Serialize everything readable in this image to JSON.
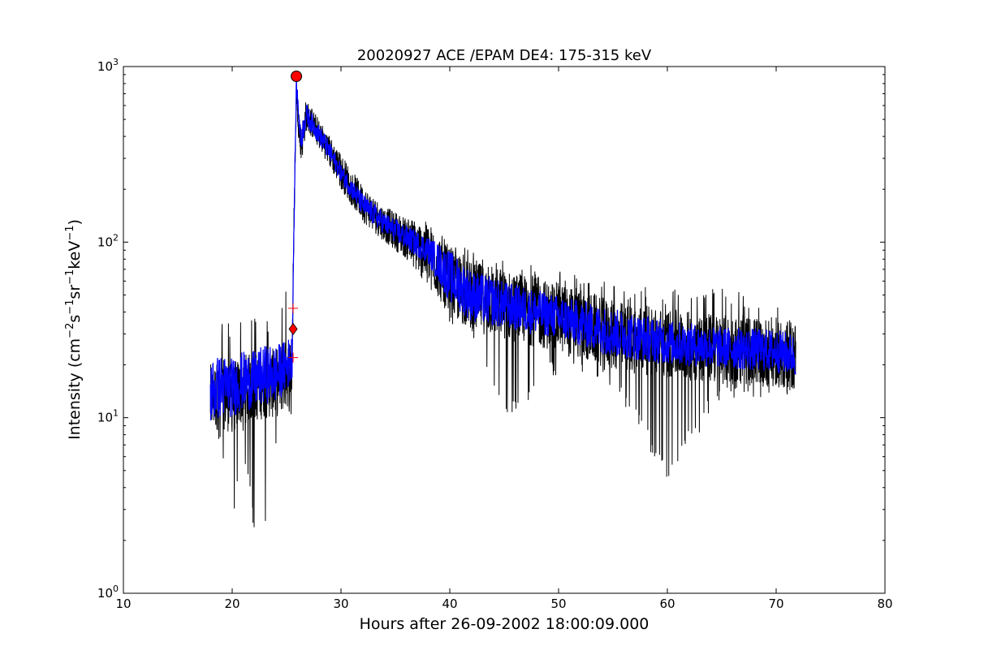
{
  "chart_data": {
    "type": "line",
    "title": "20020927 ACE /EPAM DE4: 175-315 keV",
    "xlabel": "Hours after 26-09-2002 18:00:09.000",
    "ylabel": {
      "text": "Intensity (cm",
      "parts": [
        "Intensity (cm",
        "−2",
        "s",
        "−1",
        "sr",
        "−1",
        "keV",
        "−1",
        ")"
      ]
    },
    "xlim": [
      10,
      80
    ],
    "ylim": [
      1,
      1000
    ],
    "yscale": "log",
    "grid": false,
    "x_ticks": [
      "10",
      "20",
      "30",
      "40",
      "50",
      "60",
      "70",
      "80"
    ],
    "y_ticks": [
      {
        "base": "10",
        "exp": "0"
      },
      {
        "base": "10",
        "exp": "1"
      },
      {
        "base": "10",
        "exp": "2"
      },
      {
        "base": "10",
        "exp": "3"
      }
    ],
    "colors": {
      "raw": "#000000",
      "smoothed": "#0000ff",
      "markers": "#ff0000"
    },
    "series": [
      {
        "kind": "raw",
        "x": [
          18.0,
          19.0,
          20.0,
          21.0,
          22.0,
          23.0,
          24.0,
          25.0,
          25.5,
          25.7,
          25.9,
          26.3,
          26.8,
          27.5,
          28.5,
          30.0,
          32.0,
          34.0,
          36.0,
          38.0,
          40.0,
          42.0,
          45.0,
          50.0,
          55.0,
          60.0,
          65.0,
          70.0,
          71.8
        ],
        "y": [
          13,
          14,
          13,
          15,
          15,
          16,
          16,
          18,
          20,
          150,
          860,
          360,
          560,
          480,
          380,
          260,
          170,
          130,
          110,
          95,
          60,
          50,
          45,
          38,
          30,
          27,
          25,
          24,
          23
        ],
        "noise_min": [
          6.5,
          6.5,
          2.2,
          6.5,
          2.2,
          2.2,
          6.5,
          9.0,
          10,
          120,
          600,
          260,
          430,
          380,
          300,
          200,
          130,
          100,
          80,
          55,
          35,
          25,
          9.0,
          18,
          15,
          4.3,
          13,
          13,
          13
        ],
        "noise_max": [
          38,
          36,
          35,
          38,
          37,
          36,
          38,
          55,
          40,
          200,
          900,
          450,
          660,
          560,
          450,
          320,
          210,
          160,
          140,
          130,
          100,
          90,
          80,
          70,
          60,
          55,
          55,
          50,
          38
        ]
      },
      {
        "kind": "smoothed",
        "x": [
          18.0,
          19.0,
          20.0,
          21.0,
          22.0,
          23.0,
          24.0,
          25.0,
          25.5,
          25.7,
          25.9,
          26.3,
          26.8,
          27.5,
          28.5,
          30.0,
          32.0,
          34.0,
          36.0,
          38.0,
          40.0,
          42.0,
          45.0,
          50.0,
          55.0,
          60.0,
          65.0,
          70.0,
          71.8
        ],
        "y": [
          14,
          15,
          14,
          16,
          16,
          17,
          17,
          19,
          22,
          150,
          820,
          380,
          540,
          460,
          370,
          250,
          165,
          128,
          108,
          92,
          65,
          52,
          45,
          38,
          31,
          27,
          25,
          24,
          23
        ],
        "band_low": [
          9,
          10,
          10,
          11,
          11,
          12,
          12,
          14,
          16,
          130,
          700,
          320,
          460,
          400,
          320,
          220,
          140,
          110,
          90,
          75,
          45,
          35,
          32,
          28,
          22,
          20,
          19,
          18,
          17
        ],
        "band_high": [
          22,
          23,
          22,
          24,
          24,
          26,
          26,
          28,
          30,
          180,
          900,
          440,
          620,
          520,
          420,
          280,
          190,
          148,
          125,
          108,
          90,
          70,
          60,
          50,
          42,
          36,
          33,
          32,
          30
        ]
      }
    ],
    "markers": [
      {
        "label": "peak",
        "shape": "circle",
        "x": 25.9,
        "y": 880
      },
      {
        "label": "onset",
        "shape": "diamond",
        "x": 25.6,
        "y": 32
      },
      {
        "label": "onset-upper",
        "shape": "plus",
        "x": 25.6,
        "y": 42
      },
      {
        "label": "onset-lower",
        "shape": "plus",
        "x": 25.6,
        "y": 22
      }
    ]
  }
}
